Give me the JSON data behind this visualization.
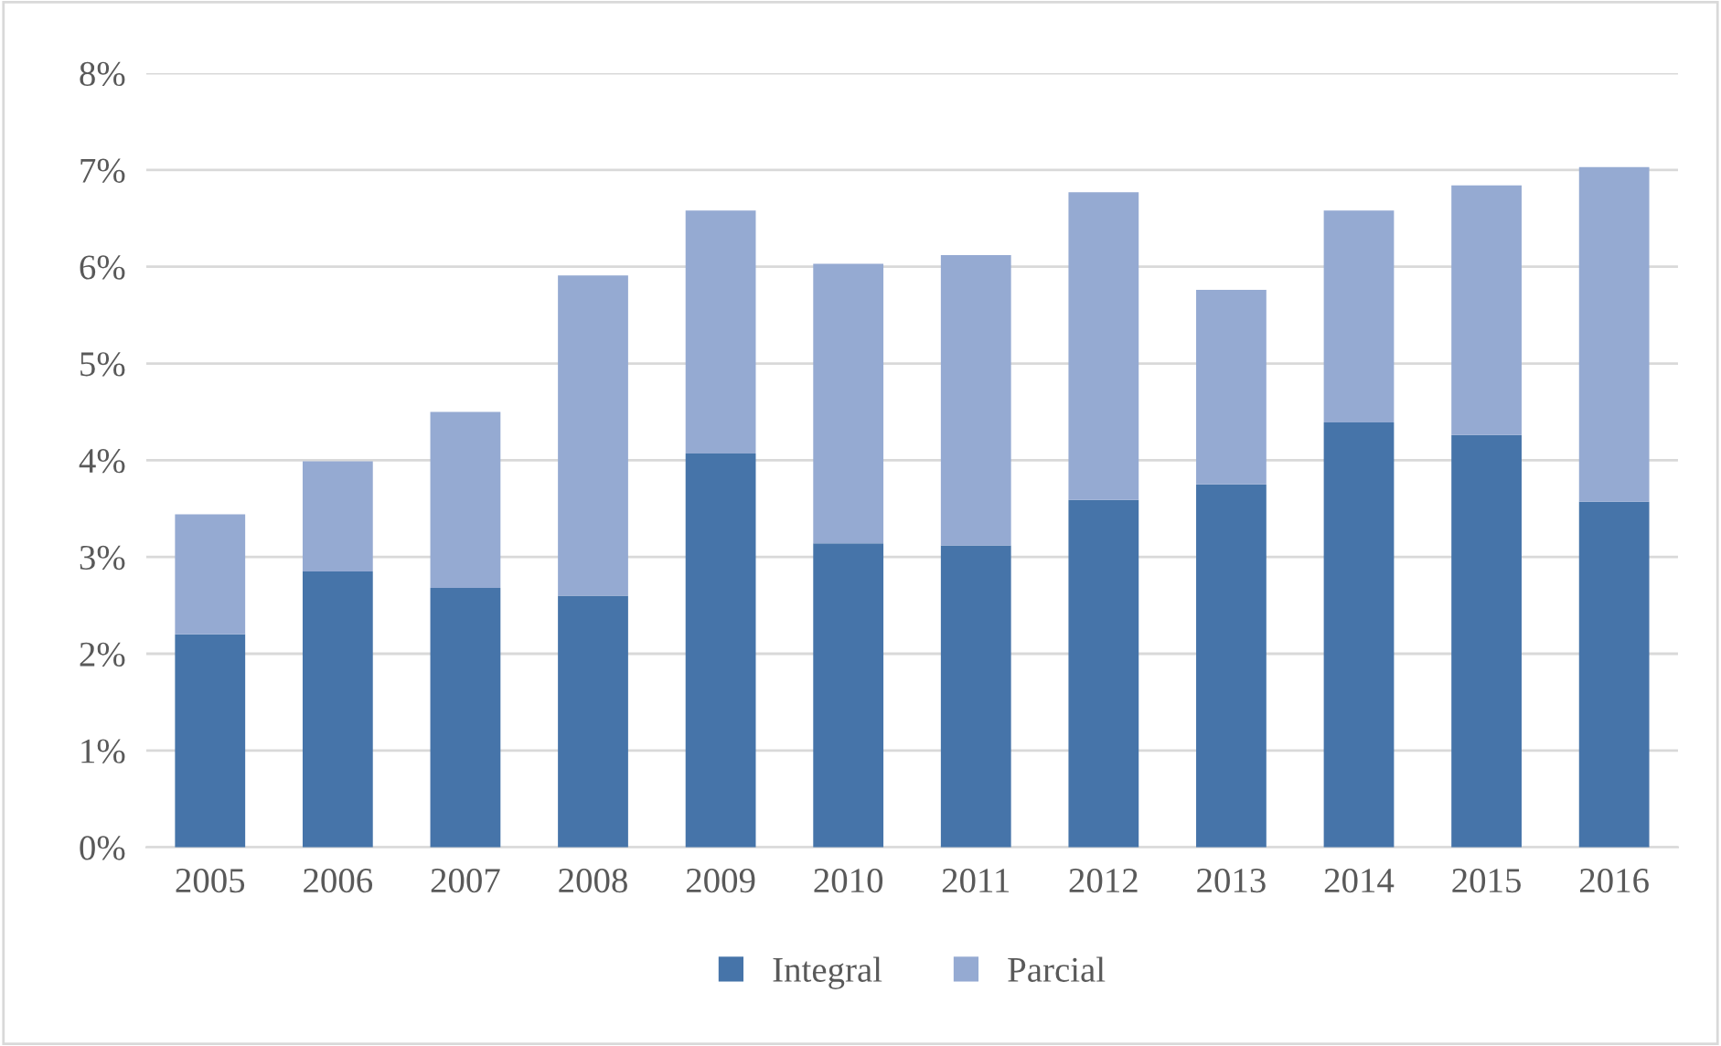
{
  "chart_data": {
    "type": "bar",
    "stacked": true,
    "categories": [
      "2005",
      "2006",
      "2007",
      "2008",
      "2009",
      "2010",
      "2011",
      "2012",
      "2013",
      "2014",
      "2015",
      "2016"
    ],
    "series": [
      {
        "name": "Integral",
        "color": "#4674a9",
        "values": [
          2.2,
          2.85,
          2.68,
          2.6,
          4.07,
          3.14,
          3.12,
          3.59,
          3.75,
          4.39,
          4.26,
          3.57
        ]
      },
      {
        "name": "Parcial",
        "color": "#95aad2",
        "values": [
          1.24,
          1.14,
          1.82,
          3.31,
          2.51,
          2.89,
          3.0,
          3.18,
          2.01,
          2.19,
          2.58,
          3.46
        ]
      }
    ],
    "ylim": [
      0,
      8
    ],
    "yticks": [
      {
        "value": 0,
        "label": "0%"
      },
      {
        "value": 1,
        "label": "1%"
      },
      {
        "value": 2,
        "label": "2%"
      },
      {
        "value": 3,
        "label": "3%"
      },
      {
        "value": 4,
        "label": "4%"
      },
      {
        "value": 5,
        "label": "5%"
      },
      {
        "value": 6,
        "label": "6%"
      },
      {
        "value": 7,
        "label": "7%"
      },
      {
        "value": 8,
        "label": "8%"
      }
    ],
    "grid": "y",
    "legend": "bottom"
  }
}
